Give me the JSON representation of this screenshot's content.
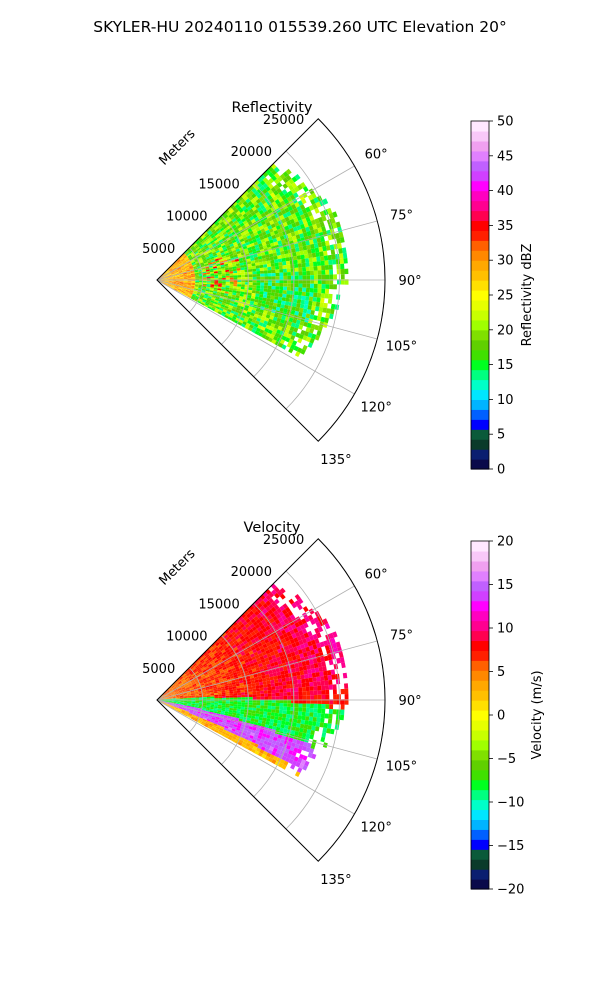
{
  "figure_title": "SKYLER-HU  20240110  015539.260 UTC Elevation 20°",
  "chart_data": [
    {
      "type": "heatmap",
      "subtype": "polar-sector (PPI radar scan)",
      "title": "Reflectivity",
      "radial_axis_label": "Meters",
      "radial_ticks": [
        5000,
        10000,
        15000,
        20000,
        25000
      ],
      "radial_tick_labels": [
        "5000",
        "10000",
        "15000",
        "20000",
        "25000"
      ],
      "radial_range": [
        0,
        25000
      ],
      "azimuth_ticks_deg": [
        60,
        75,
        90,
        105,
        120,
        135
      ],
      "azimuth_tick_labels": [
        "60°",
        "75°",
        "90°",
        "105°",
        "120°",
        "135°"
      ],
      "azimuth_range_deg": [
        45,
        135
      ],
      "data_extent": {
        "azimuth_deg": [
          45,
          117
        ],
        "range_m": [
          0,
          21000
        ]
      },
      "grid": true,
      "colorbar": {
        "label": "Reflectivity dBZ",
        "min": 0,
        "max": 50,
        "ticks": [
          0,
          5,
          10,
          15,
          20,
          25,
          30,
          35,
          40,
          45,
          50
        ],
        "tick_labels": [
          "0",
          "5",
          "10",
          "15",
          "20",
          "25",
          "30",
          "35",
          "40",
          "45",
          "50"
        ],
        "colors": [
          "#0a0a4a",
          "#0a1f70",
          "#0a3a2a",
          "#0a5a3a",
          "#0000ff",
          "#0060ff",
          "#00b4ff",
          "#00e6ff",
          "#00ffc8",
          "#00ff80",
          "#00ff20",
          "#40e000",
          "#60d000",
          "#80e000",
          "#a0ff00",
          "#c8ff00",
          "#e6ff00",
          "#ffff00",
          "#ffe000",
          "#ffc000",
          "#ffa800",
          "#ff8800",
          "#ff6000",
          "#ff2000",
          "#ff0000",
          "#ff0050",
          "#ff0090",
          "#ff00c0",
          "#ff00ff",
          "#d040ff",
          "#c060ff",
          "#e080ff",
          "#f0a0f0",
          "#f8c8f8",
          "#ffe8ff"
        ]
      },
      "dominant_values_dBZ": {
        "typical": [
          15,
          25
        ],
        "max": 35
      }
    },
    {
      "type": "heatmap",
      "subtype": "polar-sector (PPI radar scan)",
      "title": "Velocity",
      "radial_axis_label": "Meters",
      "radial_ticks": [
        5000,
        10000,
        15000,
        20000,
        25000
      ],
      "radial_tick_labels": [
        "5000",
        "10000",
        "15000",
        "20000",
        "25000"
      ],
      "radial_range": [
        0,
        25000
      ],
      "azimuth_ticks_deg": [
        60,
        75,
        90,
        105,
        120,
        135
      ],
      "azimuth_tick_labels": [
        "60°",
        "75°",
        "90°",
        "105°",
        "120°",
        "135°"
      ],
      "azimuth_range_deg": [
        45,
        135
      ],
      "data_extent": {
        "azimuth_deg": [
          45,
          117
        ],
        "range_m": [
          0,
          21000
        ]
      },
      "grid": true,
      "colorbar": {
        "label": "Velocity (m/s)",
        "min": -20,
        "max": 20,
        "ticks": [
          -20,
          -15,
          -10,
          -5,
          0,
          5,
          10,
          15,
          20
        ],
        "tick_labels": [
          "−20",
          "−15",
          "−10",
          "−5",
          "0",
          "5",
          "10",
          "15",
          "20"
        ],
        "colors": [
          "#0a0a4a",
          "#0a1f70",
          "#0a3a2a",
          "#0a5a3a",
          "#0000ff",
          "#0060ff",
          "#00b4ff",
          "#00e6ff",
          "#00ffc8",
          "#00ff80",
          "#00ff20",
          "#40e000",
          "#60d000",
          "#80e000",
          "#a0ff00",
          "#c8ff00",
          "#e6ff00",
          "#ffff00",
          "#ffe000",
          "#ffc000",
          "#ffa800",
          "#ff8800",
          "#ff6000",
          "#ff2000",
          "#ff0000",
          "#ff0050",
          "#ff0090",
          "#ff00c0",
          "#ff00ff",
          "#d040ff",
          "#c060ff",
          "#e080ff",
          "#f0a0f0",
          "#f8c8f8",
          "#ffe8ff"
        ]
      },
      "bands_by_azimuth": [
        {
          "azimuth_deg": [
            45,
            85
          ],
          "velocity_ms": 8
        },
        {
          "azimuth_deg": [
            85,
            100
          ],
          "velocity_ms": -8
        },
        {
          "azimuth_deg": [
            100,
            110
          ],
          "velocity_ms": 14
        },
        {
          "azimuth_deg": [
            110,
            117
          ],
          "velocity_ms": 3
        }
      ]
    }
  ]
}
